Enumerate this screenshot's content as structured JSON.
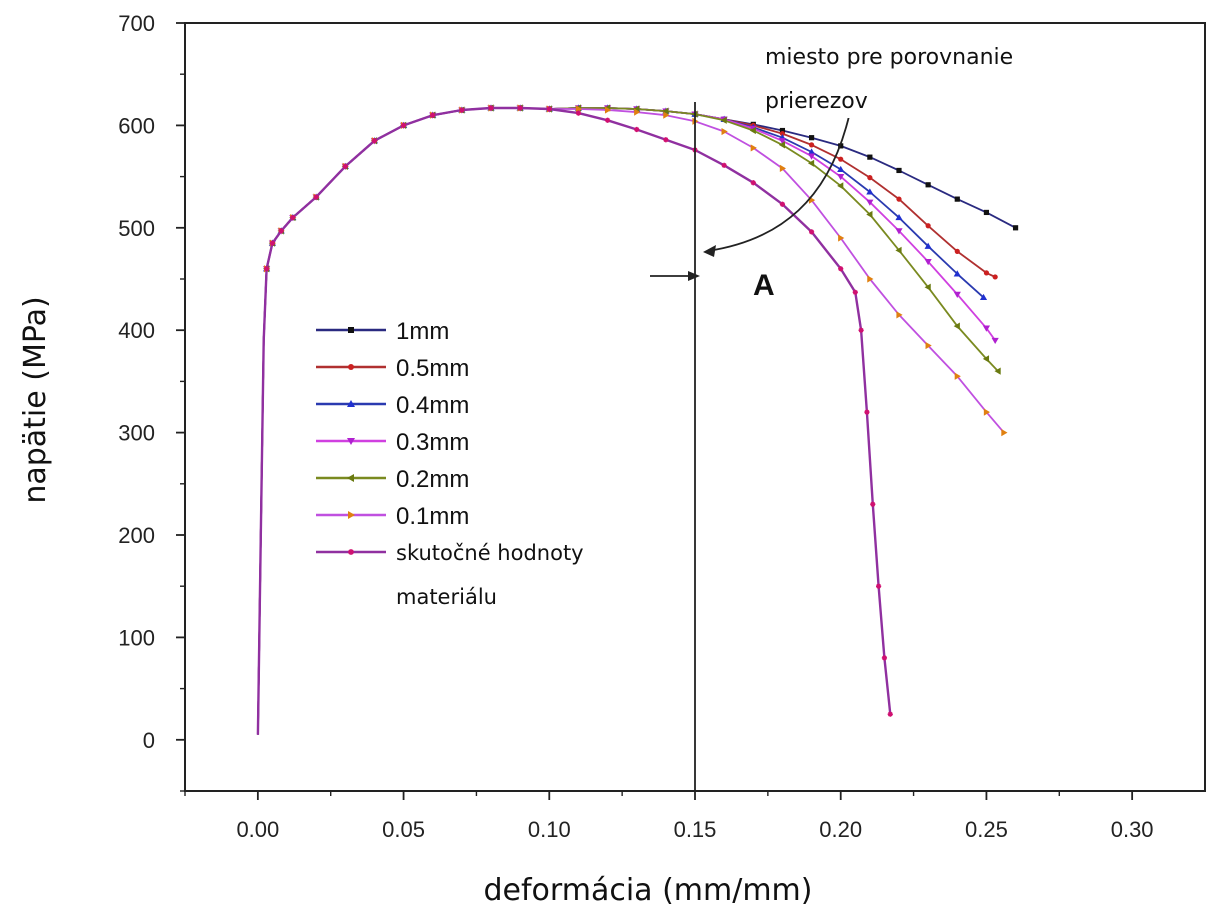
{
  "chart_data": {
    "type": "line",
    "title": "",
    "xlabel": "deformácia (mm/mm)",
    "ylabel": "napätie (MPa)",
    "xlim": [
      -0.025,
      0.325
    ],
    "ylim": [
      -50,
      700
    ],
    "x_ticks": [
      "0.00",
      "0.05",
      "0.10",
      "0.15",
      "0.20",
      "0.25",
      "0.30"
    ],
    "y_ticks": [
      "0",
      "100",
      "200",
      "300",
      "400",
      "500",
      "600",
      "700"
    ],
    "legend_position": "left-center",
    "grid": false,
    "series": [
      {
        "name": "1mm",
        "color": "#2a2a80",
        "marker": "square",
        "marker_color": "#111111",
        "x": [
          0.0,
          0.001,
          0.002,
          0.003,
          0.005,
          0.008,
          0.012,
          0.02,
          0.03,
          0.04,
          0.05,
          0.06,
          0.07,
          0.08,
          0.09,
          0.1,
          0.11,
          0.12,
          0.13,
          0.14,
          0.15,
          0.16,
          0.17,
          0.18,
          0.19,
          0.2,
          0.21,
          0.22,
          0.23,
          0.24,
          0.25,
          0.26
        ],
        "y": [
          5,
          200,
          390,
          460,
          485,
          497,
          510,
          530,
          560,
          585,
          600,
          610,
          615,
          617,
          617,
          616,
          617,
          617,
          616,
          614,
          611,
          606,
          601,
          595,
          588,
          580,
          569,
          556,
          542,
          528,
          515,
          500
        ]
      },
      {
        "name": "0.5mm",
        "color": "#b03030",
        "marker": "circle",
        "marker_color": "#cc2020",
        "x": [
          0.0,
          0.001,
          0.002,
          0.003,
          0.005,
          0.008,
          0.012,
          0.02,
          0.03,
          0.04,
          0.05,
          0.06,
          0.07,
          0.08,
          0.09,
          0.1,
          0.11,
          0.12,
          0.13,
          0.14,
          0.15,
          0.16,
          0.17,
          0.18,
          0.19,
          0.2,
          0.21,
          0.22,
          0.23,
          0.24,
          0.25,
          0.253
        ],
        "y": [
          5,
          200,
          390,
          460,
          485,
          497,
          510,
          530,
          560,
          585,
          600,
          610,
          615,
          617,
          617,
          616,
          617,
          617,
          616,
          614,
          611,
          606,
          600,
          592,
          581,
          567,
          549,
          528,
          502,
          477,
          456,
          452
        ]
      },
      {
        "name": "0.4mm",
        "color": "#2a3ab0",
        "marker": "triangle-up",
        "marker_color": "#2030d0",
        "x": [
          0.0,
          0.001,
          0.002,
          0.003,
          0.005,
          0.008,
          0.012,
          0.02,
          0.03,
          0.04,
          0.05,
          0.06,
          0.07,
          0.08,
          0.09,
          0.1,
          0.11,
          0.12,
          0.13,
          0.14,
          0.15,
          0.16,
          0.17,
          0.18,
          0.19,
          0.2,
          0.21,
          0.22,
          0.23,
          0.24,
          0.249
        ],
        "y": [
          5,
          200,
          390,
          460,
          485,
          497,
          510,
          530,
          560,
          585,
          600,
          610,
          615,
          617,
          617,
          616,
          617,
          617,
          616,
          614,
          611,
          606,
          598,
          588,
          574,
          557,
          535,
          510,
          482,
          455,
          432
        ]
      },
      {
        "name": "0.3mm",
        "color": "#d040e0",
        "marker": "triangle-down",
        "marker_color": "#b020d0",
        "x": [
          0.0,
          0.001,
          0.002,
          0.003,
          0.005,
          0.008,
          0.012,
          0.02,
          0.03,
          0.04,
          0.05,
          0.06,
          0.07,
          0.08,
          0.09,
          0.1,
          0.11,
          0.12,
          0.13,
          0.14,
          0.15,
          0.16,
          0.17,
          0.18,
          0.19,
          0.2,
          0.21,
          0.22,
          0.23,
          0.24,
          0.25,
          0.253
        ],
        "y": [
          5,
          200,
          390,
          460,
          485,
          497,
          510,
          530,
          560,
          585,
          600,
          610,
          615,
          617,
          617,
          616,
          617,
          617,
          616,
          614,
          611,
          606,
          597,
          585,
          570,
          550,
          525,
          497,
          467,
          435,
          402,
          390
        ]
      },
      {
        "name": "0.2mm",
        "color": "#7a8a20",
        "marker": "triangle-left",
        "marker_color": "#6a7a10",
        "x": [
          0.0,
          0.001,
          0.002,
          0.003,
          0.005,
          0.008,
          0.012,
          0.02,
          0.03,
          0.04,
          0.05,
          0.06,
          0.07,
          0.08,
          0.09,
          0.1,
          0.11,
          0.12,
          0.13,
          0.14,
          0.15,
          0.16,
          0.17,
          0.18,
          0.19,
          0.2,
          0.21,
          0.22,
          0.23,
          0.24,
          0.25,
          0.254
        ],
        "y": [
          5,
          200,
          390,
          460,
          485,
          497,
          510,
          530,
          560,
          585,
          600,
          610,
          615,
          617,
          617,
          616,
          617,
          617,
          616,
          614,
          611,
          605,
          595,
          581,
          563,
          541,
          513,
          478,
          442,
          404,
          372,
          360
        ]
      },
      {
        "name": "0.1mm",
        "color": "#c050e0",
        "marker": "triangle-right",
        "marker_color": "#e08010",
        "x": [
          0.0,
          0.001,
          0.002,
          0.003,
          0.005,
          0.008,
          0.012,
          0.02,
          0.03,
          0.04,
          0.05,
          0.06,
          0.07,
          0.08,
          0.09,
          0.1,
          0.11,
          0.12,
          0.13,
          0.14,
          0.15,
          0.16,
          0.17,
          0.18,
          0.19,
          0.2,
          0.21,
          0.22,
          0.23,
          0.24,
          0.25,
          0.256
        ],
        "y": [
          5,
          200,
          390,
          460,
          485,
          497,
          510,
          530,
          560,
          585,
          600,
          610,
          615,
          617,
          617,
          616,
          616,
          615,
          613,
          610,
          604,
          594,
          578,
          558,
          527,
          490,
          450,
          415,
          385,
          355,
          320,
          300
        ]
      },
      {
        "name": "skutočné hodnoty materiálu",
        "color": "#9030a0",
        "marker": "star",
        "marker_color": "#d01070",
        "x": [
          0.0,
          0.001,
          0.002,
          0.003,
          0.005,
          0.008,
          0.012,
          0.02,
          0.03,
          0.04,
          0.05,
          0.06,
          0.07,
          0.08,
          0.09,
          0.1,
          0.11,
          0.12,
          0.13,
          0.14,
          0.15,
          0.16,
          0.17,
          0.18,
          0.19,
          0.2,
          0.205,
          0.207,
          0.209,
          0.211,
          0.213,
          0.215,
          0.217
        ],
        "y": [
          5,
          200,
          390,
          460,
          485,
          497,
          510,
          530,
          560,
          585,
          600,
          610,
          615,
          617,
          617,
          616,
          612,
          605,
          596,
          586,
          576,
          561,
          544,
          523,
          496,
          460,
          437,
          400,
          320,
          230,
          150,
          80,
          25
        ]
      }
    ],
    "annotations": {
      "comparison_text_line1": "miesto pre porovnanie",
      "comparison_text_line2": "prierezov",
      "vertical_line_x": 0.15,
      "section_label": "A"
    }
  }
}
